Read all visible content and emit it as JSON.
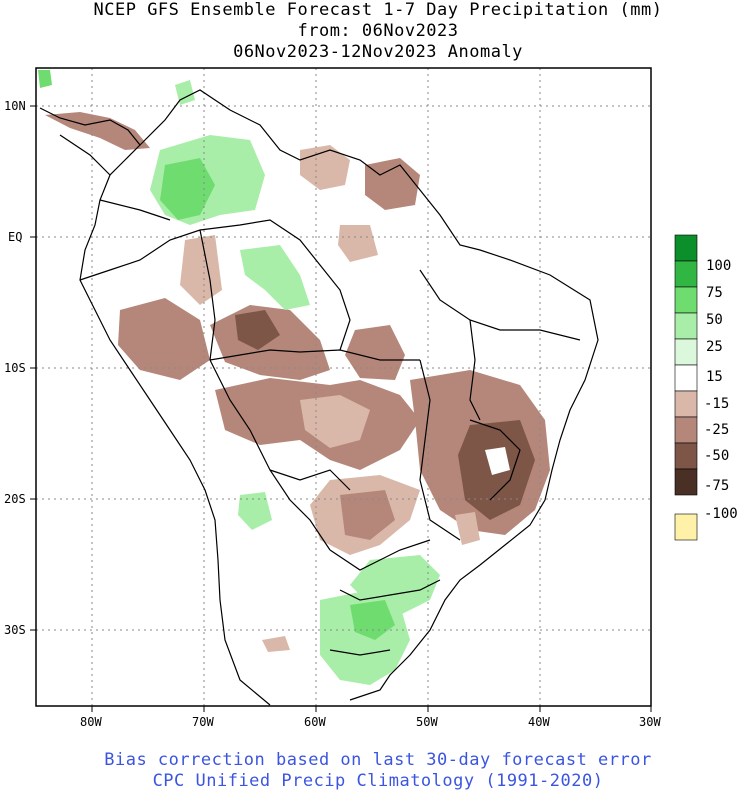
{
  "header": {
    "title": "NCEP GFS Ensemble Forecast 1-7 Day Precipitation (mm)",
    "from": "from: 06Nov2023",
    "period": "06Nov2023-12Nov2023 Anomaly"
  },
  "axes": {
    "lat_labels": [
      "10N",
      "EQ",
      "10S",
      "20S",
      "30S"
    ],
    "lon_labels": [
      "80W",
      "70W",
      "60W",
      "50W",
      "40W",
      "30W"
    ]
  },
  "legend": {
    "labels": [
      "100",
      "75",
      "50",
      "25",
      "15",
      "-15",
      "-25",
      "-50",
      "-75",
      "-100"
    ],
    "colors": [
      "#0b8f2a",
      "#31b644",
      "#6fdc6f",
      "#a8eea8",
      "#dcf8dc",
      "#ffffff",
      "#d9b8aa",
      "#b5877a",
      "#7e5648",
      "#4a2f25",
      "#fff2a8"
    ]
  },
  "footer": {
    "line1": "Bias correction based on last 30-day forecast error",
    "line2": "CPC Unified Precip Climatology (1991-2020)"
  }
}
